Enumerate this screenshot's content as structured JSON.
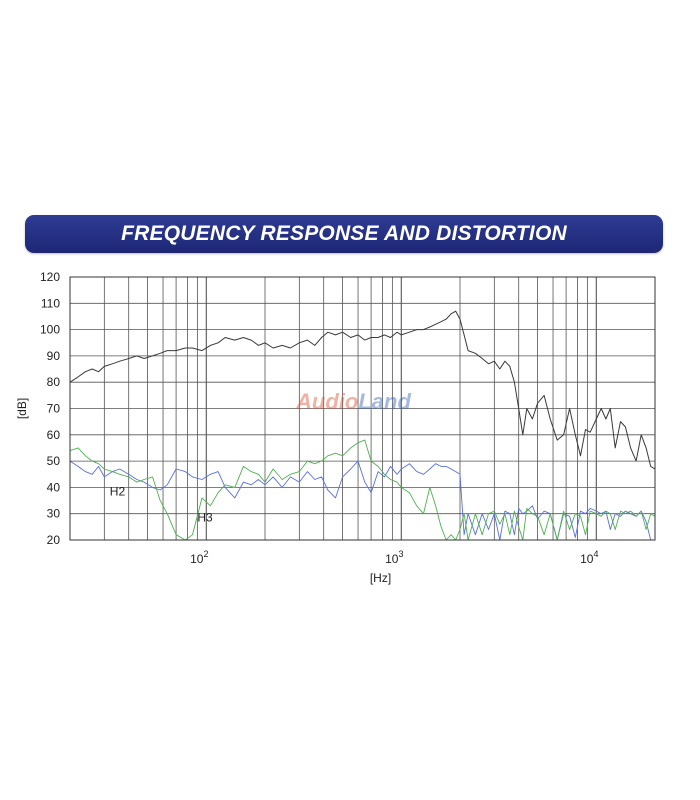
{
  "header": {
    "title": "FREQUENCY RESPONSE AND DISTORTION",
    "color": "#252f85"
  },
  "watermark": {
    "text": "AudioLand",
    "colors": [
      "#e0533a",
      "#3a63b8"
    ]
  },
  "chart_data": {
    "type": "line",
    "title": "",
    "xlabel": "[Hz]",
    "ylabel": "[dB]",
    "xscale": "log",
    "xlim": [
      20,
      20000
    ],
    "ylim": [
      20,
      120
    ],
    "grid": true,
    "y_ticks": [
      20,
      30,
      40,
      50,
      60,
      70,
      80,
      90,
      100,
      110,
      120
    ],
    "x_ticks": [
      {
        "value": 100,
        "base": "10",
        "exp": "2"
      },
      {
        "value": 1000,
        "base": "10",
        "exp": "3"
      },
      {
        "value": 10000,
        "base": "10",
        "exp": "4"
      }
    ],
    "annotations": [
      {
        "text": "H2",
        "x": 32,
        "y": 37
      },
      {
        "text": "H3",
        "x": 90,
        "y": 27
      }
    ],
    "series": [
      {
        "name": "",
        "color": "#3a3a3a",
        "x": [
          20,
          22,
          24,
          26,
          28,
          30,
          33,
          36,
          40,
          44,
          48,
          53,
          58,
          63,
          70,
          78,
          85,
          95,
          105,
          115,
          125,
          140,
          155,
          170,
          185,
          200,
          220,
          245,
          270,
          300,
          330,
          360,
          390,
          420,
          460,
          500,
          550,
          600,
          650,
          700,
          760,
          820,
          880,
          950,
          1000,
          1100,
          1200,
          1300,
          1400,
          1500,
          1600,
          1700,
          1800,
          1900,
          2000,
          2100,
          2200,
          2400,
          2600,
          2800,
          3000,
          3200,
          3400,
          3600,
          3800,
          4000,
          4200,
          4400,
          4700,
          5000,
          5400,
          5800,
          6300,
          6800,
          7300,
          7800,
          8300,
          8800,
          9300,
          10000,
          10600,
          11200,
          11800,
          12500,
          13300,
          14100,
          15000,
          16000,
          17000,
          18000,
          19000,
          20000
        ],
        "y": [
          80,
          82,
          84,
          85,
          84,
          86,
          87,
          88,
          89,
          90,
          89,
          90,
          91,
          92,
          92,
          93,
          93,
          92,
          94,
          95,
          97,
          96,
          97,
          96,
          94,
          95,
          93,
          94,
          93,
          95,
          96,
          94,
          97,
          99,
          98,
          99,
          97,
          98,
          96,
          97,
          97,
          98,
          97,
          99,
          98,
          99,
          100,
          100,
          101,
          102,
          103,
          104,
          106,
          107,
          104,
          98,
          92,
          91,
          89,
          87,
          88,
          85,
          88,
          86,
          80,
          70,
          60,
          70,
          66,
          72,
          75,
          66,
          58,
          60,
          70,
          60,
          52,
          62,
          61,
          66,
          70,
          66,
          70,
          55,
          65,
          63,
          55,
          50,
          60,
          55,
          48,
          47
        ]
      },
      {
        "name": "H2",
        "color": "#5a6fe0",
        "x": [
          20,
          22,
          24,
          26,
          28,
          30,
          33,
          36,
          40,
          44,
          48,
          53,
          58,
          63,
          70,
          78,
          85,
          95,
          105,
          115,
          125,
          140,
          155,
          170,
          185,
          200,
          220,
          245,
          270,
          300,
          330,
          360,
          390,
          420,
          460,
          500,
          550,
          600,
          650,
          700,
          760,
          820,
          880,
          950,
          1000,
          1100,
          1200,
          1300,
          1400,
          1500,
          1600,
          1700,
          1800,
          1900,
          2000,
          2100,
          2200,
          2400,
          2600,
          2800,
          3000,
          3200,
          3400,
          3600,
          3800,
          4000,
          4200,
          4400,
          4700,
          5000,
          5400,
          5800,
          6300,
          6800,
          7300,
          7800,
          8300,
          8800,
          9300,
          10000,
          10600,
          11200,
          11800,
          12500,
          13300,
          14100,
          15000,
          16000,
          17000,
          18000,
          19000,
          20000
        ],
        "y": [
          50,
          48,
          46,
          45,
          48,
          44,
          46,
          47,
          45,
          43,
          42,
          40,
          39,
          41,
          47,
          46,
          44,
          43,
          45,
          46,
          40,
          36,
          42,
          41,
          43,
          41,
          44,
          40,
          44,
          42,
          46,
          43,
          44,
          39,
          36,
          44,
          47,
          50,
          42,
          38,
          46,
          44,
          48,
          45,
          47,
          49,
          46,
          45,
          47,
          49,
          48,
          48,
          47,
          46,
          45,
          22,
          30,
          22,
          30,
          24,
          30,
          20,
          31,
          30,
          22,
          32,
          30,
          31,
          33,
          28,
          31,
          30,
          20,
          30,
          29,
          21,
          31,
          30,
          32,
          31,
          30,
          31,
          24,
          30,
          29,
          31,
          30,
          29,
          31,
          27,
          20,
          20
        ]
      },
      {
        "name": "H3",
        "color": "#4fb04f",
        "x": [
          20,
          22,
          24,
          26,
          28,
          30,
          33,
          36,
          40,
          44,
          48,
          53,
          58,
          63,
          70,
          78,
          85,
          95,
          105,
          115,
          125,
          140,
          155,
          170,
          185,
          200,
          220,
          245,
          270,
          300,
          330,
          360,
          390,
          420,
          460,
          500,
          550,
          600,
          650,
          700,
          760,
          820,
          880,
          950,
          1000,
          1100,
          1200,
          1300,
          1400,
          1500,
          1600,
          1700,
          1800,
          1900,
          2000,
          2100,
          2200,
          2400,
          2600,
          2800,
          3000,
          3200,
          3400,
          3600,
          3800,
          4000,
          4200,
          4400,
          4700,
          5000,
          5400,
          5800,
          6300,
          6800,
          7300,
          7800,
          8300,
          8800,
          9300,
          10000,
          10600,
          11200,
          11800,
          12500,
          13300,
          14100,
          15000,
          16000,
          17000,
          18000,
          19000,
          20000
        ],
        "y": [
          54,
          55,
          52,
          50,
          49,
          47,
          46,
          45,
          44,
          42,
          43,
          44,
          35,
          30,
          22,
          20,
          22,
          36,
          33,
          38,
          41,
          40,
          48,
          46,
          45,
          42,
          47,
          43,
          45,
          46,
          50,
          49,
          50,
          52,
          53,
          52,
          55,
          57,
          58,
          50,
          48,
          45,
          43,
          42,
          40,
          38,
          33,
          30,
          40,
          33,
          25,
          20,
          22,
          20,
          24,
          30,
          20,
          30,
          22,
          30,
          31,
          26,
          30,
          22,
          31,
          25,
          20,
          32,
          30,
          29,
          22,
          30,
          20,
          31,
          24,
          30,
          29,
          22,
          31,
          30,
          29,
          31,
          30,
          24,
          31,
          30,
          31,
          29,
          31,
          24,
          30,
          29
        ]
      }
    ]
  }
}
